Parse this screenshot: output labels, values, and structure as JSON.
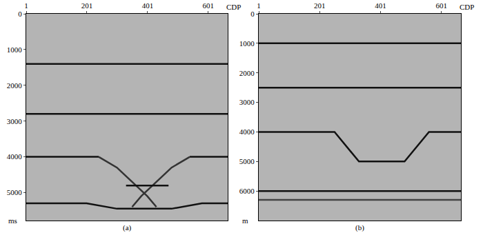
{
  "chart_data": [
    {
      "type": "line",
      "title": "(a)",
      "x_label": "CDP",
      "y_label": "ms",
      "xlim": [
        1,
        665
      ],
      "ylim": [
        5780,
        0
      ],
      "xticks": [
        1,
        201,
        401,
        601
      ],
      "yticks": [
        0,
        1000,
        2000,
        3000,
        4000,
        5000
      ],
      "grid": false,
      "series": [
        {
          "x": [
            1,
            665
          ],
          "values": [
            1400,
            1400
          ],
          "color": "#111111"
        },
        {
          "x": [
            1,
            665
          ],
          "values": [
            2800,
            2800
          ],
          "color": "#111111"
        },
        {
          "x": [
            1,
            240
          ],
          "values": [
            4000,
            4000
          ],
          "color": "#111111"
        },
        {
          "x": [
            540,
            665
          ],
          "values": [
            4000,
            4000
          ],
          "color": "#111111"
        },
        {
          "x": [
            240,
            300,
            350,
            400,
            430
          ],
          "values": [
            4000,
            4300,
            4700,
            5100,
            5400
          ],
          "color": "#333333"
        },
        {
          "x": [
            540,
            480,
            430,
            380,
            350
          ],
          "values": [
            4000,
            4300,
            4700,
            5100,
            5400
          ],
          "color": "#333333"
        },
        {
          "x": [
            330,
            470
          ],
          "values": [
            4800,
            4800
          ],
          "color": "#111111"
        },
        {
          "x": [
            1,
            200,
            300,
            480,
            580,
            665
          ],
          "values": [
            5300,
            5300,
            5450,
            5450,
            5300,
            5300
          ],
          "color": "#111111"
        }
      ]
    },
    {
      "type": "line",
      "title": "(b)",
      "x_label": "CDP",
      "y_label": "m",
      "xlim": [
        1,
        665
      ],
      "ylim": [
        7000,
        0
      ],
      "xticks": [
        1,
        201,
        401,
        601
      ],
      "yticks": [
        0,
        1000,
        2000,
        3000,
        4000,
        5000,
        6000
      ],
      "grid": false,
      "series": [
        {
          "x": [
            1,
            665
          ],
          "values": [
            1000,
            1000
          ],
          "color": "#111111"
        },
        {
          "x": [
            1,
            665
          ],
          "values": [
            2500,
            2500
          ],
          "color": "#111111"
        },
        {
          "x": [
            1,
            250,
            330,
            480,
            560,
            665
          ],
          "values": [
            4000,
            4000,
            5000,
            5000,
            4000,
            4000
          ],
          "color": "#111111"
        },
        {
          "x": [
            1,
            665
          ],
          "values": [
            6000,
            6000
          ],
          "color": "#111111"
        },
        {
          "x": [
            1,
            665
          ],
          "values": [
            6300,
            6300
          ],
          "color": "#444444"
        }
      ]
    }
  ]
}
